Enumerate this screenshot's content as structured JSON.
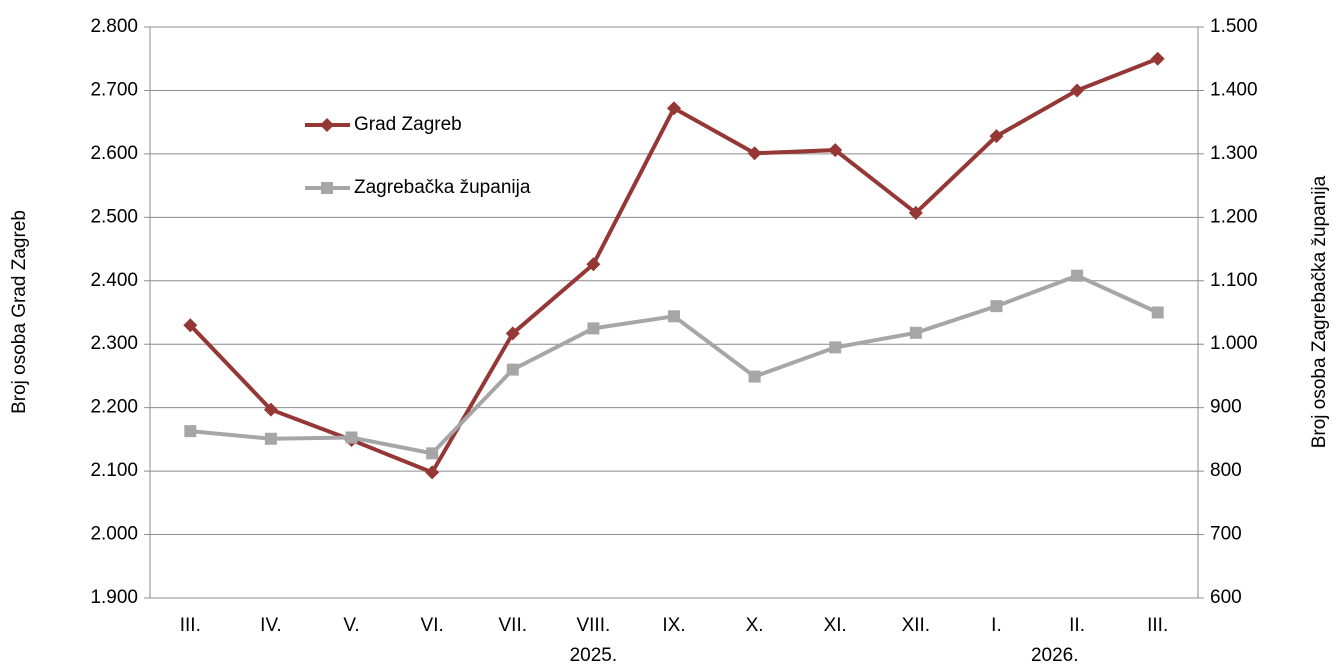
{
  "chart_data": {
    "type": "line",
    "categories": [
      "III.",
      "IV.",
      "V.",
      "VI.",
      "VII.",
      "VIII.",
      "IX.",
      "X.",
      "XI.",
      "XII.",
      "I.",
      "II.",
      "III."
    ],
    "annotations": [
      "2025.",
      "2026."
    ],
    "ylabel": "Broj osoba Grad Zagreb",
    "y2label": "Broj osoba Zagrebačka županija",
    "ylim": [
      1900,
      2800
    ],
    "yticks": [
      {
        "value": 1900,
        "label": "1.900"
      },
      {
        "value": 2000,
        "label": "2.000"
      },
      {
        "value": 2100,
        "label": "2.100"
      },
      {
        "value": 2200,
        "label": "2.200"
      },
      {
        "value": 2300,
        "label": "2.300"
      },
      {
        "value": 2400,
        "label": "2.400"
      },
      {
        "value": 2500,
        "label": "2.500"
      },
      {
        "value": 2600,
        "label": "2.600"
      },
      {
        "value": 2700,
        "label": "2.700"
      },
      {
        "value": 2800,
        "label": "2.800"
      }
    ],
    "y2lim": [
      600,
      1500
    ],
    "y2ticks": [
      600,
      700,
      800,
      900,
      {
        "value": 1000,
        "label": "1.000"
      },
      {
        "value": 1100,
        "label": "1.100"
      },
      {
        "value": 1200,
        "label": "1.200"
      },
      {
        "value": 1300,
        "label": "1.300"
      },
      {
        "value": 1400,
        "label": "1.400"
      },
      {
        "value": 1500,
        "label": "1.500"
      }
    ],
    "grid": true,
    "legend": "upper left",
    "series": [
      {
        "name": "Grad Zagreb",
        "color": "#953735",
        "marker": "diamond",
        "values": [
          2330,
          2197,
          2149,
          2098,
          2317,
          2426,
          2672,
          2601,
          2606,
          2507,
          2628,
          2700,
          2750
        ]
      },
      {
        "name": "Zagrebačka županija",
        "color": "#a6a6a6",
        "marker": "square",
        "axis": "y2",
        "values": [
          863,
          851,
          853,
          828,
          960,
          1025,
          1044,
          949,
          995,
          1018,
          1060,
          1108,
          1050
        ]
      }
    ]
  }
}
